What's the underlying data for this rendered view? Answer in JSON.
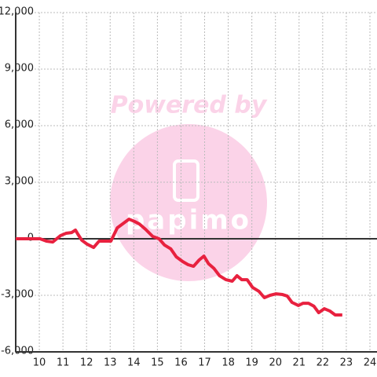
{
  "chart_data": {
    "type": "line",
    "watermark": "Powered by",
    "logo": "papimo",
    "x": [
      9.0,
      10.03,
      10.3,
      10.57,
      10.9,
      11.13,
      11.37,
      11.53,
      11.63,
      11.8,
      12.03,
      12.3,
      12.53,
      12.77,
      13.03,
      13.3,
      13.57,
      13.8,
      14.03,
      14.23,
      14.5,
      14.8,
      15.07,
      15.3,
      15.57,
      15.8,
      16.07,
      16.3,
      16.53,
      16.77,
      16.97,
      17.17,
      17.4,
      17.63,
      17.9,
      18.17,
      18.37,
      18.57,
      18.8,
      19.03,
      19.3,
      19.53,
      19.77,
      20.03,
      20.3,
      20.5,
      20.7,
      20.97,
      21.17,
      21.4,
      21.63,
      21.83,
      22.07,
      22.3,
      22.53,
      22.83
    ],
    "series": [
      {
        "color": "#e8213f",
        "values": [
          0,
          0,
          -125,
          -170,
          170,
          290,
          330,
          460,
          250,
          -80,
          -290,
          -460,
          -125,
          -125,
          -125,
          580,
          830,
          1040,
          920,
          790,
          500,
          125,
          0,
          -330,
          -540,
          -960,
          -1210,
          -1375,
          -1460,
          -1125,
          -920,
          -1330,
          -1580,
          -1960,
          -2170,
          -2250,
          -1960,
          -2170,
          -2170,
          -2580,
          -2790,
          -3125,
          -3000,
          -2920,
          -2960,
          -3040,
          -3375,
          -3540,
          -3420,
          -3420,
          -3580,
          -3920,
          -3710,
          -3830,
          -4040,
          -4040
        ]
      }
    ],
    "xlim": [
      9,
      24.3
    ],
    "xticks": [
      10,
      11,
      12,
      13,
      14,
      15,
      16,
      17,
      18,
      19,
      20,
      21,
      22,
      23,
      24
    ],
    "ylim": [
      -6000,
      12000
    ],
    "yticks": [
      {
        "value": -6000,
        "label": "-6,000"
      },
      {
        "value": -3000,
        "label": "-3,000"
      },
      0,
      {
        "value": 3000,
        "label": "3,000"
      },
      {
        "value": 6000,
        "label": "6,000"
      },
      {
        "value": 9000,
        "label": "9,000"
      },
      {
        "value": 12000,
        "label": "12,000"
      }
    ],
    "grid": true
  }
}
